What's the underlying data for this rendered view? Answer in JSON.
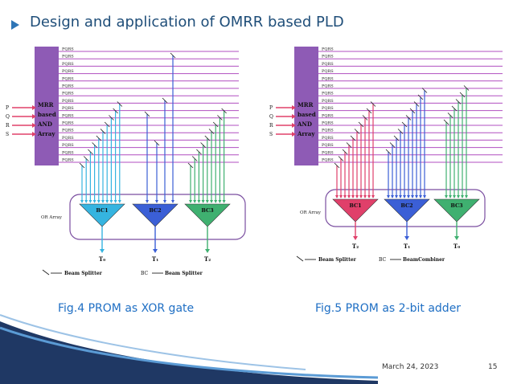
{
  "slide": {
    "title": "Design and application of OMRR based PLD",
    "caption_left": "Fig.4 PROM as XOR gate",
    "caption_right": "Fig.5 PROM as 2-bit adder",
    "date": "March 24, 2023",
    "page_number": "15"
  },
  "fig4": {
    "inputs": [
      "P",
      "Q",
      "R",
      "S"
    ],
    "and_array_label": [
      "MRR",
      "based",
      "AND",
      "Array"
    ],
    "minterms": [
      "PQRS",
      "PQRS",
      "PQRS",
      "PQRS",
      "PQRS",
      "PQRS",
      "PQRS",
      "PQRS",
      "PQRS",
      "PQRS",
      "PQRS",
      "PQRS",
      "PQRS",
      "PQRS",
      "PQRS",
      "PQRS"
    ],
    "or_array_label": "OR Array",
    "combiners": [
      "BC1",
      "BC2",
      "BC3"
    ],
    "outputs": [
      "T₀",
      "T₁",
      "T₂"
    ],
    "legend_splitter": "Beam Splitter",
    "legend_bc_code": "BC",
    "legend_bc_text": "Beam Splitter"
  },
  "fig5": {
    "inputs": [
      "P",
      "Q",
      "R",
      "S"
    ],
    "and_array_label": [
      "MRR",
      "based",
      "AND",
      "Array"
    ],
    "minterms": [
      "PQRS",
      "PQRS",
      "PQRS",
      "PQRS",
      "PQRS",
      "PQRS",
      "PQRS",
      "PQRS",
      "PQRS",
      "PQRS",
      "PQRS",
      "PQRS",
      "PQRS",
      "PQRS",
      "PQRS",
      "PQRS"
    ],
    "or_array_label": "OR Array",
    "combiners": [
      "BC1",
      "BC2",
      "BC3"
    ],
    "outputs": [
      "T₂",
      "T₁",
      "T₀"
    ],
    "legend_splitter": "Beam Splitter",
    "legend_bc_code": "BC",
    "legend_bc_text": "BeamCombiner"
  },
  "colors": {
    "title": "#1f4e79",
    "caption": "#1f6fc4",
    "and_array": "#8e5bb5",
    "lines": "#b04fc0",
    "cyan": "#35b4e0",
    "blue": "#3b5fd6",
    "green": "#3fb070",
    "red": "#e0406a"
  }
}
